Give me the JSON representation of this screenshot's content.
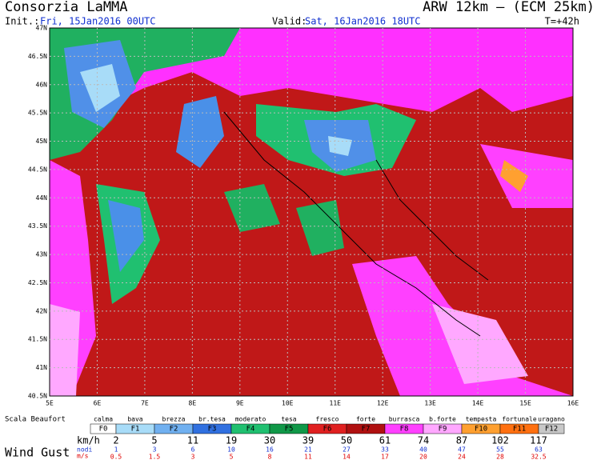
{
  "header": {
    "title": "Consorzia LaMMA",
    "model": "ARW 12km – (ECM 25km)",
    "init_label": "Init.:",
    "init_value": "Fri, 15Jan2016 00UTC",
    "valid_label": "Valid:",
    "valid_value": "Sat, 16Jan2016 18UTC",
    "lead": "T=+42h"
  },
  "map": {
    "lat_labels": [
      "47N",
      "46.5N",
      "46N",
      "45.5N",
      "45N",
      "44.5N",
      "44N",
      "43.5N",
      "43N",
      "42.5N",
      "42N",
      "41.5N",
      "41N",
      "40.5N"
    ],
    "lon_labels": [
      "5E",
      "6E",
      "7E",
      "8E",
      "9E",
      "10E",
      "11E",
      "12E",
      "13E",
      "14E",
      "15E",
      "16E"
    ]
  },
  "legend": {
    "scale_label": "Scala Beaufort",
    "title": "Wind Gust",
    "names": [
      "calma",
      "bava",
      "brezza",
      "br.tesa",
      "moderato",
      "tesa",
      "fresco",
      "forte",
      "burrasca",
      "b.forte",
      "tempesta",
      "fortunale",
      "uragano"
    ],
    "codes": [
      "F0",
      "F1",
      "F2",
      "F3",
      "F4",
      "F5",
      "F6",
      "F7",
      "F8",
      "F9",
      "F10",
      "F11",
      "F12"
    ],
    "colors": [
      "#ffffff",
      "#a8dcf8",
      "#70b0f0",
      "#3070e0",
      "#20c070",
      "#109848",
      "#e02020",
      "#b01010",
      "#ff40ff",
      "#ffa8ff",
      "#ffa030",
      "#ff7010",
      "#c8c8c8"
    ],
    "kmh_unit": "km/h",
    "kmh": [
      "2",
      "5",
      "11",
      "19",
      "30",
      "39",
      "50",
      "61",
      "74",
      "87",
      "102",
      "117"
    ],
    "knots_unit": "nodi",
    "knots": [
      "1",
      "3",
      "6",
      "10",
      "16",
      "21",
      "27",
      "33",
      "40",
      "47",
      "55",
      "63"
    ],
    "ms_unit": "m/s",
    "ms": [
      "0.5",
      "1.5",
      "3",
      "5",
      "8",
      "11",
      "14",
      "17",
      "20",
      "24",
      "28",
      "32.5"
    ]
  }
}
